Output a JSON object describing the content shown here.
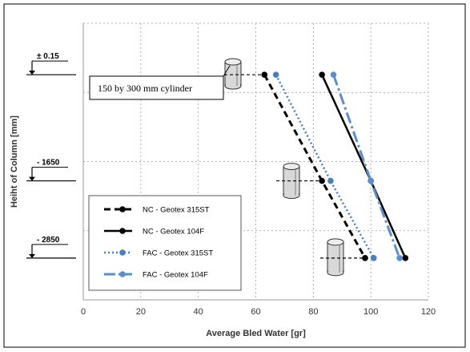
{
  "chart_data": {
    "type": "line",
    "xlabel": "Average Bled Water [gr]",
    "ylabel": "Heiht of Column [mm]",
    "xlim": [
      0,
      120
    ],
    "xticks": [
      0,
      20,
      40,
      60,
      80,
      100,
      120
    ],
    "ylim": [
      -3500,
      800
    ],
    "grid": true,
    "legend": "bottom-left",
    "depth_levels": [
      {
        "value": 0,
        "label": "± 0.15"
      },
      {
        "value": -1650,
        "label": "- 1650"
      },
      {
        "value": -2850,
        "label": "- 2850"
      }
    ],
    "series": [
      {
        "name": "NC - Geotex 315ST",
        "color": "#000000",
        "dash": "8,5",
        "width": 3,
        "x": [
          63,
          83,
          98
        ],
        "y": [
          0,
          -1650,
          -2850
        ]
      },
      {
        "name": "NC - Geotex 104F",
        "color": "#000000",
        "dash": "",
        "width": 2.5,
        "x": [
          83,
          100,
          112
        ],
        "y": [
          0,
          -1650,
          -2850
        ]
      },
      {
        "name": "FAC - Geotex 315ST",
        "color": "#4a7fbf",
        "dash": "2,3",
        "width": 2.5,
        "x": [
          67,
          86,
          101
        ],
        "y": [
          0,
          -1650,
          -2850
        ]
      },
      {
        "name": "FAC - Geotex 104F",
        "color": "#5b8fcc",
        "dash": "14,4,3,4",
        "width": 3,
        "x": [
          87,
          100,
          110
        ],
        "y": [
          0,
          -1650,
          -2850
        ]
      }
    ],
    "annotations": [
      {
        "text": "150 by 300 mm cylinder"
      }
    ]
  }
}
